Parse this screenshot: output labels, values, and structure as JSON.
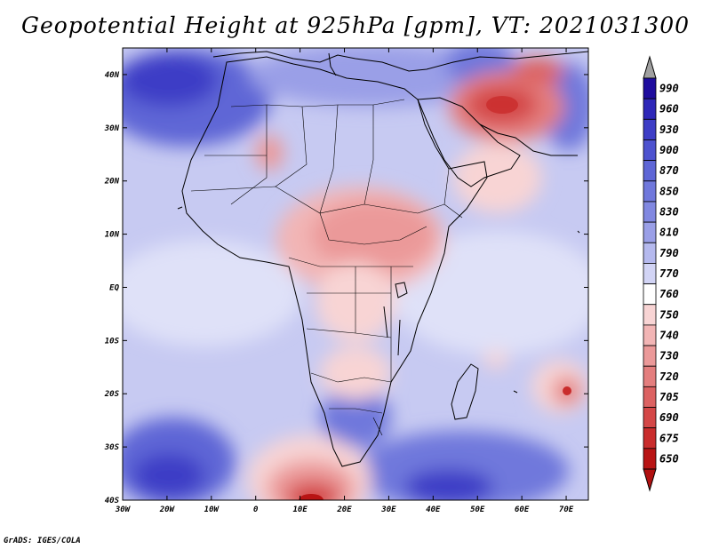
{
  "title": "Geopotential Height at 925hPa [gpm], VT: 2021031300",
  "credit": "GrADS: IGES/COLA",
  "map": {
    "lon_ticks": [
      "30W",
      "20W",
      "10W",
      "0",
      "10E",
      "20E",
      "30E",
      "40E",
      "50E",
      "60E",
      "70E"
    ],
    "lat_ticks": [
      "40N",
      "30N",
      "20N",
      "10N",
      "EQ",
      "10S",
      "20S",
      "30S",
      "40S"
    ]
  },
  "colorbar": {
    "levels": [
      "990",
      "960",
      "930",
      "900",
      "870",
      "850",
      "830",
      "810",
      "790",
      "770",
      "760",
      "750",
      "740",
      "730",
      "720",
      "705",
      "690",
      "675",
      "650"
    ],
    "colors": [
      "#1e0c9e",
      "#2e27b8",
      "#3d3dc6",
      "#4d52cf",
      "#5e66d6",
      "#7078dc",
      "#8188e1",
      "#9a9fe7",
      "#b5b9ee",
      "#d2d4f5",
      "#ffffff",
      "#f8d4d4",
      "#f2b5b5",
      "#eb9999",
      "#e47e7e",
      "#dc6262",
      "#d44747",
      "#c92c2c",
      "#b81414"
    ],
    "top_arrow_color": "#a0a0a0",
    "bottom_arrow_color": "#b01010"
  }
}
